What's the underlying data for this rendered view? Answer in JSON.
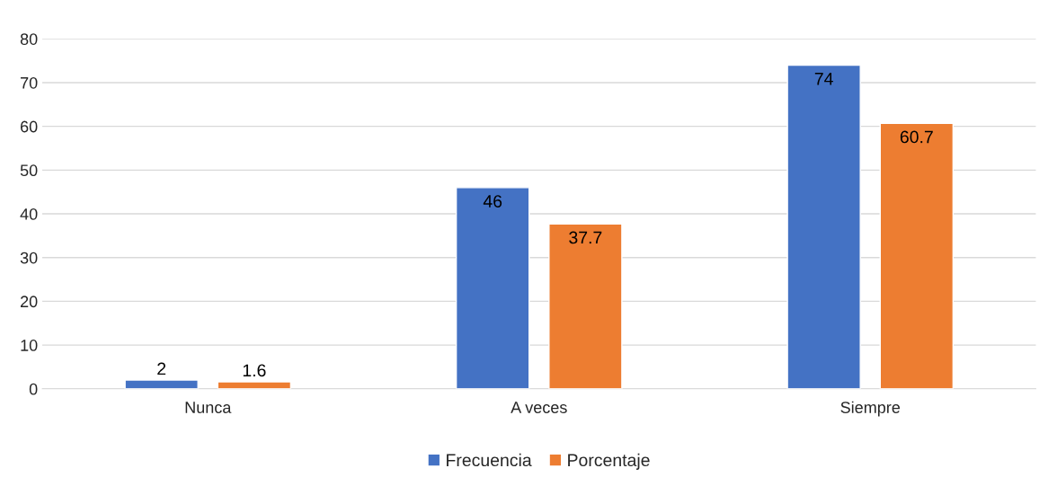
{
  "chart_data": {
    "type": "bar",
    "categories": [
      "Nunca",
      "A veces",
      "Siempre"
    ],
    "series": [
      {
        "name": "Frecuencia",
        "color": "#4472c4",
        "values": [
          2,
          46,
          74
        ]
      },
      {
        "name": "Porcentaje",
        "color": "#ed7d31",
        "values": [
          1.6,
          37.7,
          60.7
        ]
      }
    ],
    "ylim": [
      0,
      80
    ],
    "yticks": [
      0,
      10,
      20,
      30,
      40,
      50,
      60,
      70,
      80
    ],
    "grid": "y",
    "legend": "bottom",
    "data_labels": true
  }
}
